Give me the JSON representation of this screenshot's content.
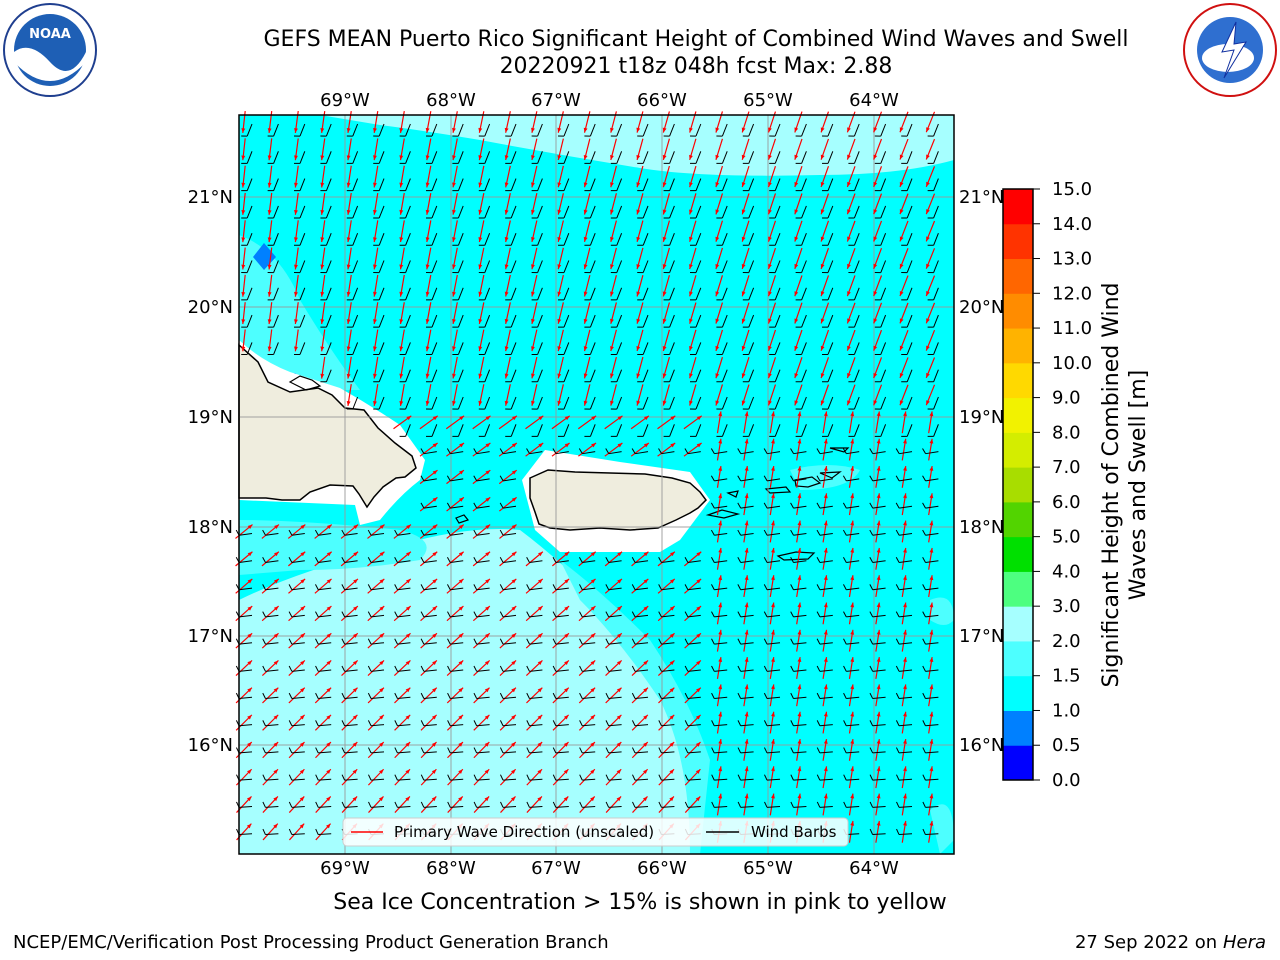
{
  "title_line1": "GEFS MEAN Puerto Rico Significant Height of Combined Wind Waves and Swell",
  "title_line2": "20220921 t18z 048h fcst   Max: 2.88",
  "footer_left": "NCEP/EMC/Verification Post Processing Product Generation Branch",
  "footer_date": "27 Sep 2022 on",
  "footer_machine": "Hera",
  "sea_ice_note": "Sea Ice Concentration > 15% is shown in pink to yellow",
  "logos": {
    "left": "noaa-logo",
    "right": "nws-logo"
  },
  "map": {
    "lon_labels": [
      "69°W",
      "68°W",
      "67°W",
      "66°W",
      "65°W",
      "64°W"
    ],
    "lat_labels": [
      "21°N",
      "20°N",
      "19°N",
      "18°N",
      "17°N",
      "16°N"
    ],
    "legend": {
      "wave_label": "Primary Wave Direction (unscaled)",
      "barb_label": "Wind Barbs",
      "wave_color": "#ff0000",
      "barb_color": "#000000"
    },
    "colors": {
      "land": "#efedde",
      "sea_default": "#00ffff",
      "sea_light": "#a6ffff",
      "sea_mid": "#4dffff",
      "sea_deep": "#0080ff"
    }
  },
  "colorbar": {
    "label": "Significant Height of Combined Wind Waves and Swell [m]",
    "ticks": [
      "0.0",
      "0.5",
      "1.0",
      "1.5",
      "2.0",
      "3.0",
      "4.0",
      "5.0",
      "6.0",
      "7.0",
      "8.0",
      "9.0",
      "10.0",
      "11.0",
      "12.0",
      "13.0",
      "14.0",
      "15.0"
    ],
    "colors": [
      "#0000ff",
      "#0080ff",
      "#00ffff",
      "#4dffff",
      "#a6ffff",
      "#4dff80",
      "#00e000",
      "#52d400",
      "#a8dd00",
      "#d4ed00",
      "#f2f200",
      "#ffd900",
      "#ffb300",
      "#ff8c00",
      "#ff6600",
      "#ff3300",
      "#ff0000"
    ]
  }
}
